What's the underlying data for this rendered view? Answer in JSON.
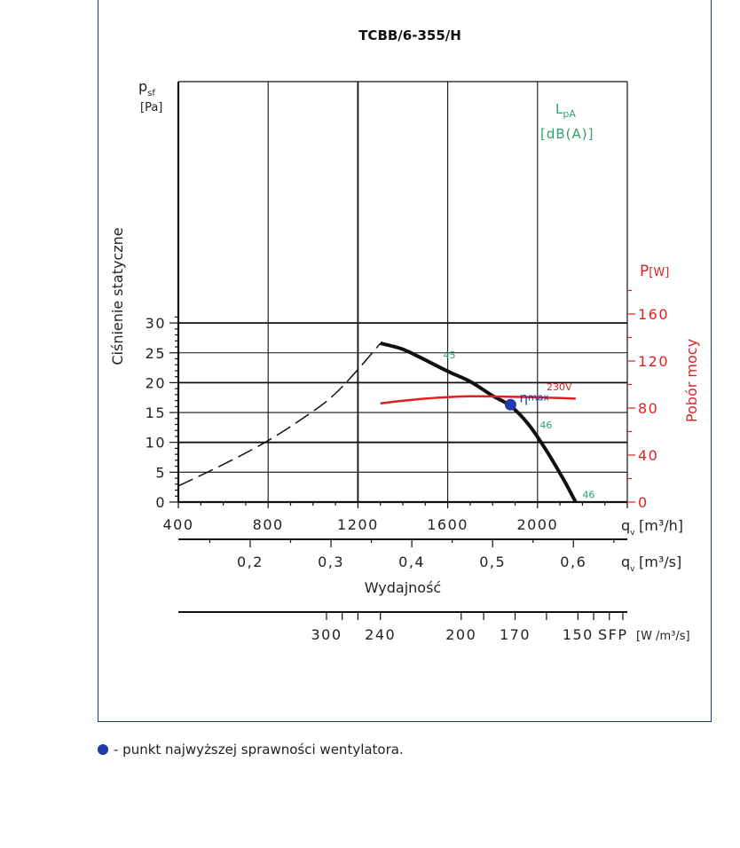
{
  "chart_data": {
    "type": "line",
    "title": "TCBB/6-355/H",
    "ylabel": "Ciśnienie statyczne",
    "ylabel_symbol": "p",
    "ylabel_symbol_sub": "sf",
    "ylabel_unit": "[Pa]",
    "xlabel": "Wydajność",
    "x_unit_h_symbol": "q",
    "x_unit_h_sub": "v",
    "x_unit_h": "[m³/h]",
    "x_unit_s_symbol": "q",
    "x_unit_s_sub": "v",
    "x_unit_s": "[m³/s]",
    "y2label": "Pobór mocy",
    "y2_unit": "P",
    "y2_unit_bracket": "[W]",
    "noise_label": "L",
    "noise_label_sub": "pA",
    "noise_unit": "[dB(A)]",
    "sfp_label": "SFP",
    "sfp_unit": "[W /m³/s]",
    "xlim": [
      400,
      2400
    ],
    "ylim": [
      0,
      32
    ],
    "y2lim": [
      0,
      180
    ],
    "x_ticks": [
      "400",
      "800",
      "1200",
      "1600",
      "2000"
    ],
    "x_tick_values": [
      400,
      800,
      1200,
      1600,
      2000
    ],
    "y_ticks": [
      "0",
      "5",
      "10",
      "15",
      "20",
      "25",
      "30"
    ],
    "y_tick_values": [
      0,
      5,
      10,
      15,
      20,
      25,
      30
    ],
    "y2_ticks": [
      "0",
      "40",
      "80",
      "120",
      "160"
    ],
    "y2_tick_values": [
      0,
      40,
      80,
      120,
      160
    ],
    "x2_ticks": [
      "0,2",
      "0,3",
      "0,4",
      "0,5",
      "0,6"
    ],
    "x2_tick_values": [
      0.2,
      0.3,
      0.4,
      0.5,
      0.6
    ],
    "sfp_ticks": [
      "300",
      "240",
      "200",
      "170",
      "150"
    ],
    "sfp_tick_flow": [
      1060,
      1300,
      1660,
      1900,
      2180
    ],
    "series": [
      {
        "name": "",
        "kind": "pressure-unstable",
        "color": "#111111",
        "x": [
          400,
          600,
          800,
          1000,
          1100,
          1200,
          1300
        ],
        "y": [
          2.7,
          6.3,
          10.3,
          15.2,
          18.2,
          22.2,
          26.6
        ]
      },
      {
        "name": "",
        "kind": "pressure",
        "color": "#111111",
        "x": [
          1300,
          1400,
          1500,
          1600,
          1700,
          1800,
          1880,
          1960,
          2040,
          2120,
          2170
        ],
        "y": [
          26.6,
          25.6,
          23.8,
          21.9,
          20.2,
          17.8,
          16.1,
          13.0,
          8.6,
          3.5,
          0
        ]
      },
      {
        "name": "230V",
        "kind": "power",
        "color": "#e02020",
        "x": [
          1300,
          1500,
          1700,
          1900,
          2100,
          2170
        ],
        "y": [
          84,
          88,
          90,
          89.5,
          88.5,
          88
        ]
      }
    ],
    "noise_points": [
      {
        "x": 1580,
        "y": 24.1,
        "label": "45"
      },
      {
        "x": 2010,
        "y": 12.3,
        "label": "46"
      },
      {
        "x": 2200,
        "y": 0.7,
        "label": "46"
      }
    ],
    "voltage_label": "230V",
    "eta_point": {
      "x": 1880,
      "y": 16.3,
      "label": "η",
      "label_sub": "max"
    },
    "colors": {
      "pressure": "#111111",
      "power": "#e02020",
      "noise": "#2aa36a",
      "eta": "#1f3aa8",
      "frame": "#1a3a78"
    },
    "grid": true
  },
  "legend_note": "- punkt najwyższej sprawności wentylatora."
}
